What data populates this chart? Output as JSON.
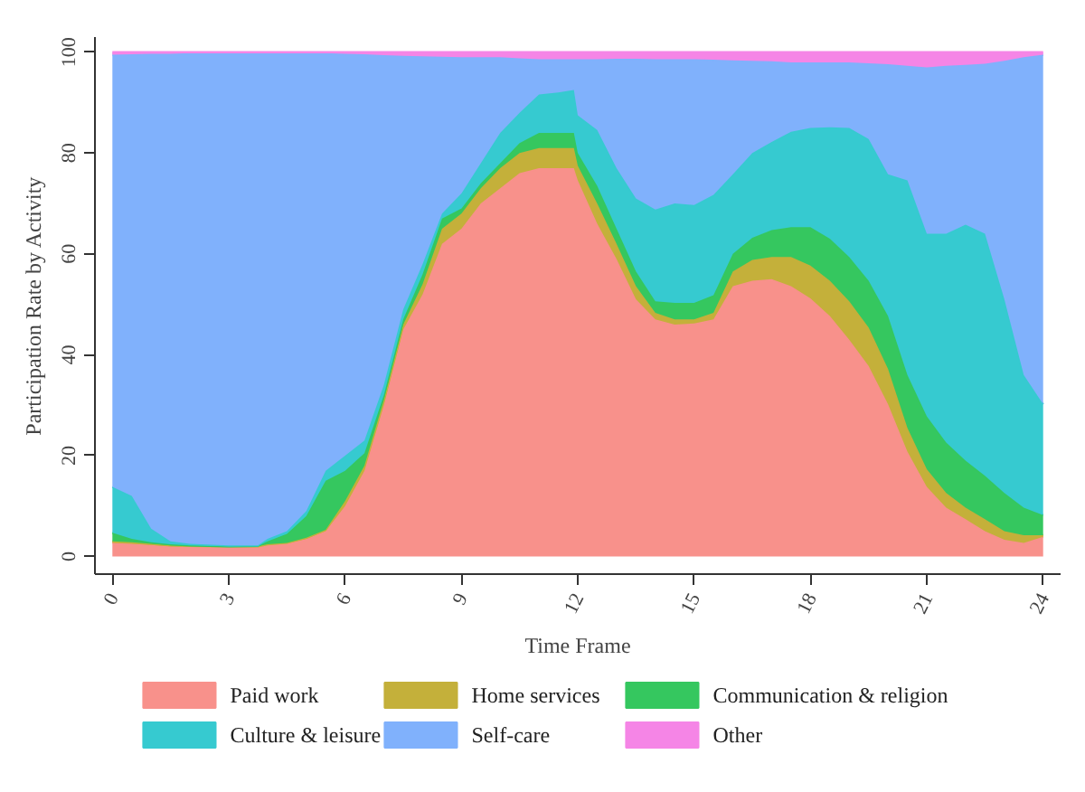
{
  "chart_data": {
    "type": "area",
    "stacked": true,
    "xlabel": "Time Frame",
    "ylabel": "Participation Rate by Activity",
    "x": [
      0,
      0.5,
      1,
      1.5,
      2,
      3,
      3.75,
      4,
      4.5,
      5,
      5.5,
      6,
      6.5,
      7,
      7.5,
      8,
      8.5,
      9,
      9.5,
      10,
      10.5,
      11,
      11.5,
      11.9,
      12,
      12.5,
      13,
      13.5,
      14,
      14.5,
      15,
      15.5,
      16,
      16.5,
      17,
      17.5,
      18,
      18.5,
      19,
      19.5,
      20,
      20.5,
      21,
      21.5,
      22,
      22.5,
      23,
      23.5,
      24
    ],
    "xlim": [
      -0.45,
      24.45
    ],
    "xticks": [
      0,
      3,
      6,
      9,
      12,
      15,
      18,
      21,
      24
    ],
    "ylim": [
      -3.5,
      103
    ],
    "yticks": [
      0,
      20,
      40,
      60,
      80,
      100
    ],
    "grid": false,
    "legend": "bottom",
    "series": [
      {
        "name": "Paid work",
        "color": "#f8918b",
        "values": [
          2.7,
          2.5,
          2.3,
          2.0,
          2.0,
          2.0,
          2.0,
          2.3,
          2.6,
          3.5,
          5.0,
          10,
          17,
          30,
          45,
          52,
          62,
          65,
          70,
          73,
          76,
          77,
          77,
          77,
          74.6,
          66,
          59,
          51,
          47,
          46,
          46.2,
          47,
          53.6,
          54.7,
          55,
          53.6,
          51.2,
          47.7,
          43,
          37.8,
          30.2,
          20.8,
          13.8,
          9.7,
          7.4,
          5,
          3.3,
          2.7,
          3.9
        ]
      },
      {
        "name": "Home services",
        "color": "#c4b03a",
        "values": [
          0.3,
          0.3,
          0.2,
          0.2,
          0.1,
          0,
          0,
          0.1,
          0.1,
          0.2,
          0.3,
          1,
          1,
          1,
          1,
          2,
          3,
          3,
          3,
          4,
          4,
          4,
          4,
          4,
          2.9,
          4,
          3,
          2.6,
          1.3,
          1,
          0.8,
          1.3,
          2.9,
          4.1,
          4.4,
          5.8,
          6.5,
          7,
          7.6,
          7.6,
          7,
          4.7,
          3.5,
          2.9,
          2.3,
          2.4,
          1.7,
          1.5,
          0.3
        ]
      },
      {
        "name": "Communication & religion",
        "color": "#35c75f",
        "values": [
          1.7,
          0.7,
          0.3,
          0.2,
          0.1,
          0,
          0.1,
          0.6,
          1.8,
          4.3,
          9.7,
          6,
          2.5,
          1,
          1,
          2,
          2,
          1,
          1,
          1,
          2,
          3,
          3,
          3,
          2.5,
          3.5,
          3,
          2.9,
          2.3,
          3.3,
          3.3,
          3.5,
          3.5,
          4.4,
          5.3,
          5.9,
          7.6,
          8.3,
          8.8,
          9.3,
          10.5,
          10.5,
          10.5,
          10,
          9.3,
          8.6,
          7.6,
          5.5,
          4
        ]
      },
      {
        "name": "Culture & leisure",
        "color": "#36cad0",
        "values": [
          9.1,
          8.5,
          2.7,
          0.6,
          0.3,
          0.2,
          0.1,
          0.5,
          0.5,
          1.0,
          2.0,
          3,
          2.5,
          2,
          2,
          2,
          1,
          3,
          4,
          6,
          6,
          7.6,
          8,
          8.5,
          7.5,
          11.1,
          12,
          14.5,
          18.2,
          19.7,
          19.4,
          19.9,
          15.8,
          16.8,
          17.5,
          18.9,
          19.7,
          22.1,
          25.6,
          28.1,
          28.1,
          38.6,
          36.2,
          41.4,
          46.8,
          48,
          38.4,
          26.3,
          22
        ]
      },
      {
        "name": "Self-care",
        "color": "#80b1fc",
        "values": [
          85.7,
          87.6,
          94.2,
          96.7,
          97.3,
          97.6,
          97.6,
          96.3,
          94.8,
          90.8,
          82.8,
          79.7,
          76.6,
          65.4,
          50.3,
          41.2,
          31.1,
          27,
          21,
          15,
          10.8,
          7,
          6.6,
          6.1,
          11.1,
          14,
          21.7,
          27.7,
          29.8,
          28.6,
          28.9,
          26.8,
          22.6,
          18.3,
          16,
          13.8,
          13,
          12.9,
          13,
          15,
          21.8,
          22.7,
          33,
          33.3,
          31.7,
          33.7,
          47.3,
          63,
          69.3
        ]
      },
      {
        "name": "Other",
        "color": "#f585e6",
        "values": [
          0.5,
          0.4,
          0.3,
          0.3,
          0.2,
          0.2,
          0.2,
          0.2,
          0.2,
          0.2,
          0.2,
          0.3,
          0.4,
          0.6,
          0.7,
          0.8,
          0.9,
          1.0,
          1.0,
          1.0,
          1.2,
          1.4,
          1.4,
          1.4,
          1.4,
          1.4,
          1.3,
          1.3,
          1.4,
          1.4,
          1.4,
          1.5,
          1.6,
          1.7,
          1.8,
          2.0,
          2.0,
          2.0,
          2.0,
          2.2,
          2.4,
          2.7,
          3.0,
          2.7,
          2.5,
          2.3,
          1.7,
          1.0,
          0.5
        ]
      }
    ]
  }
}
